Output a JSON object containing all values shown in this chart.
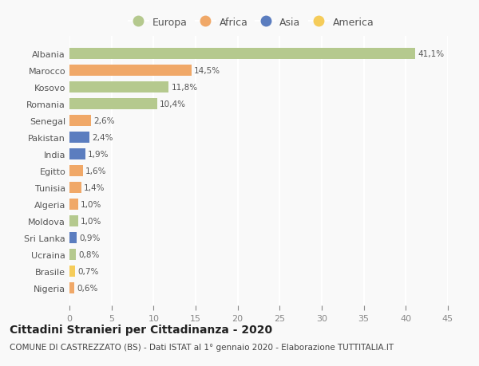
{
  "countries": [
    "Albania",
    "Marocco",
    "Kosovo",
    "Romania",
    "Senegal",
    "Pakistan",
    "India",
    "Egitto",
    "Tunisia",
    "Algeria",
    "Moldova",
    "Sri Lanka",
    "Ucraina",
    "Brasile",
    "Nigeria"
  ],
  "values": [
    41.1,
    14.5,
    11.8,
    10.4,
    2.6,
    2.4,
    1.9,
    1.6,
    1.4,
    1.0,
    1.0,
    0.9,
    0.8,
    0.7,
    0.6
  ],
  "labels": [
    "41,1%",
    "14,5%",
    "11,8%",
    "10,4%",
    "2,6%",
    "2,4%",
    "1,9%",
    "1,6%",
    "1,4%",
    "1,0%",
    "1,0%",
    "0,9%",
    "0,8%",
    "0,7%",
    "0,6%"
  ],
  "continents": [
    "Europa",
    "Africa",
    "Europa",
    "Europa",
    "Africa",
    "Asia",
    "Asia",
    "Africa",
    "Africa",
    "Africa",
    "Europa",
    "Asia",
    "Europa",
    "America",
    "Africa"
  ],
  "continent_colors": {
    "Europa": "#b5c98e",
    "Africa": "#f0a868",
    "Asia": "#5b7dbf",
    "America": "#f5cc5a"
  },
  "legend_order": [
    "Europa",
    "Africa",
    "Asia",
    "America"
  ],
  "title": "Cittadini Stranieri per Cittadinanza - 2020",
  "subtitle": "COMUNE DI CASTREZZATO (BS) - Dati ISTAT al 1° gennaio 2020 - Elaborazione TUTTITALIA.IT",
  "xlim": [
    0,
    45
  ],
  "xticks": [
    0,
    5,
    10,
    15,
    20,
    25,
    30,
    35,
    40,
    45
  ],
  "background_color": "#f9f9f9",
  "grid_color": "#ffffff",
  "bar_height": 0.65,
  "title_fontsize": 10,
  "subtitle_fontsize": 7.5,
  "label_fontsize": 7.5,
  "tick_fontsize": 8,
  "legend_fontsize": 9
}
